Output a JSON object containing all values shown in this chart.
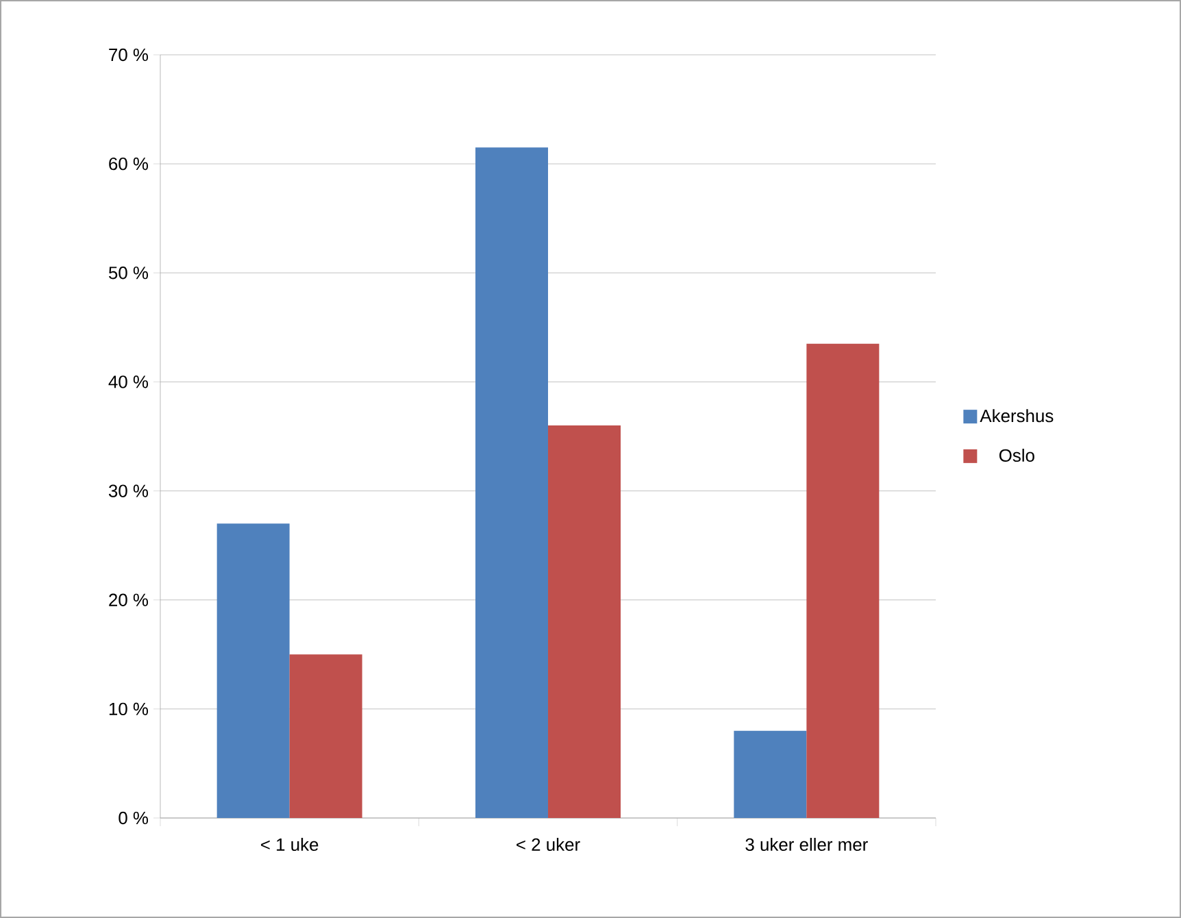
{
  "chart_data": {
    "type": "bar",
    "categories": [
      "< 1 uke",
      "< 2 uker",
      "3 uker eller mer"
    ],
    "series": [
      {
        "name": "Akershus",
        "color": "#4f81bd",
        "values": [
          27,
          61.5,
          8
        ]
      },
      {
        "name": "Oslo",
        "color": "#c0504d",
        "values": [
          15,
          36,
          43.5
        ]
      }
    ],
    "ylim": [
      0,
      70
    ],
    "yticks": [
      {
        "value": 0,
        "label": "0 %"
      },
      {
        "value": 10,
        "label": "10 %"
      },
      {
        "value": 20,
        "label": "20 %"
      },
      {
        "value": 30,
        "label": "30 %"
      },
      {
        "value": 40,
        "label": "40 %"
      },
      {
        "value": 50,
        "label": "50 %"
      },
      {
        "value": 60,
        "label": "60 %"
      },
      {
        "value": 70,
        "label": "70 %"
      }
    ],
    "grid": "y",
    "legend": "right"
  }
}
